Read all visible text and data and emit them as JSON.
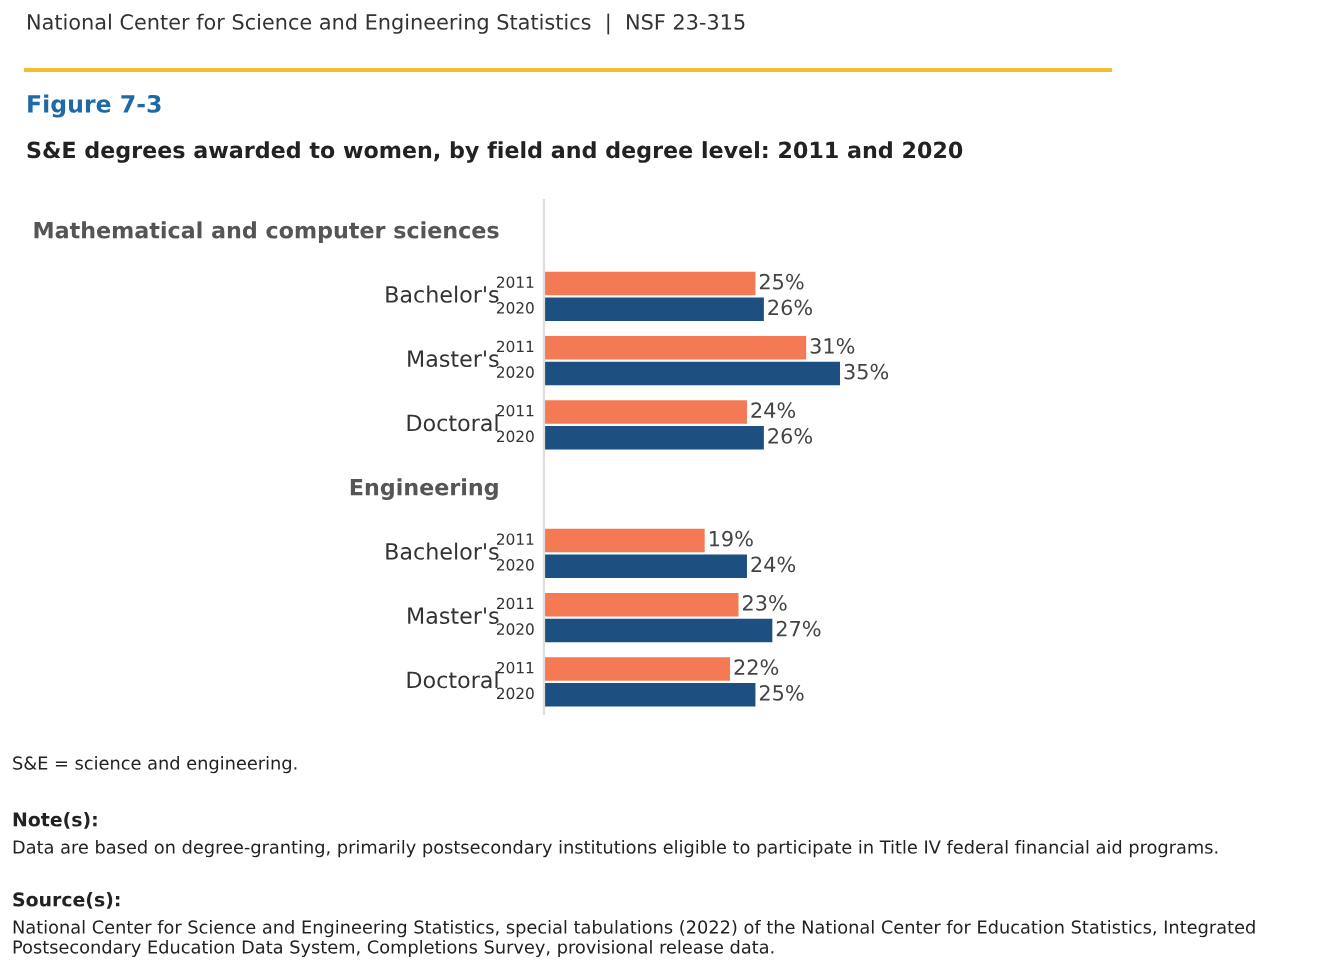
{
  "chart_data": {
    "type": "bar",
    "orientation": "horizontal",
    "title": "Figure 7-3",
    "subtitle": "S&E degrees awarded to women, by field and degree level: 2011 and 2020",
    "categories": [
      "Mathematical and computer sciences",
      "Bachelor's",
      "Master's",
      "Doctoral",
      "Engineering",
      "Bachelor's",
      "Master's",
      "Doctoral"
    ],
    "series": [
      {
        "name": "2011",
        "color": "#f37a54",
        "values": [
          null,
          25,
          31,
          24,
          null,
          19,
          23,
          22
        ],
        "value_labels": [
          null,
          "25%",
          "31%",
          "24%",
          null,
          "19%",
          "23%",
          "22%"
        ]
      },
      {
        "name": "2020",
        "color": "#1d4f80",
        "values": [
          null,
          26,
          35,
          26,
          null,
          24,
          27,
          25
        ],
        "value_labels": [
          null,
          "26%",
          "35%",
          "26%",
          null,
          "24%",
          "27%",
          "25%"
        ]
      }
    ],
    "legend": false,
    "annotations": [
      "National Center for Science and Engineering Statistics  |  NSF 23-315",
      "S&E = science and engineering.",
      "Note(s):",
      "Data are based on degree-granting, primarily postsecondary institutions eligible to participate in Title IV federal financial aid programs.",
      "Source(s):",
      "National Center for Science and Engineering Statistics, special tabulations (2022) of the National Center for Education Statistics, Integrated Postsecondary Education Data System, Completions Survey, provisional release data."
    ]
  }
}
